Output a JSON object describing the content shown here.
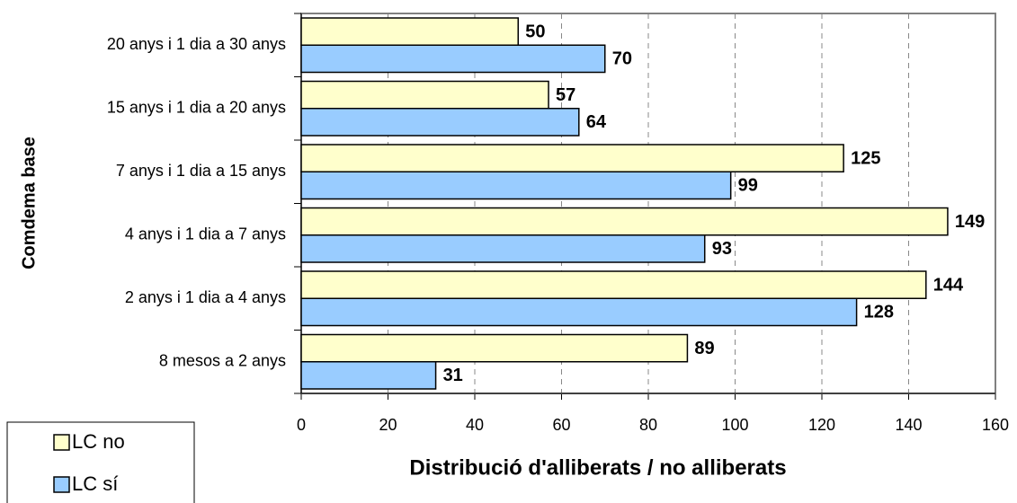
{
  "chart_data": {
    "type": "bar",
    "orientation": "horizontal",
    "x_label": "Distribució d'alliberats / no alliberats",
    "y_label": "Comdema base",
    "categories": [
      "20 anys i 1 dia a 30 anys",
      "15 anys i 1 dia a 20 anys",
      "7 anys i 1 dia a 15 anys",
      "4 anys i 1 dia a 7 anys",
      "2 anys i 1 dia a 4 anys",
      "8 mesos a 2 anys"
    ],
    "series": [
      {
        "name": "LC no",
        "color": "#ffffcc",
        "values": [
          50,
          57,
          125,
          149,
          144,
          89
        ]
      },
      {
        "name": "LC sí",
        "color": "#99ccff",
        "values": [
          70,
          64,
          99,
          93,
          128,
          31
        ]
      }
    ],
    "xlim": [
      0,
      160
    ],
    "xticks": [
      0,
      20,
      40,
      60,
      80,
      100,
      120,
      140,
      160
    ],
    "grid": true
  }
}
